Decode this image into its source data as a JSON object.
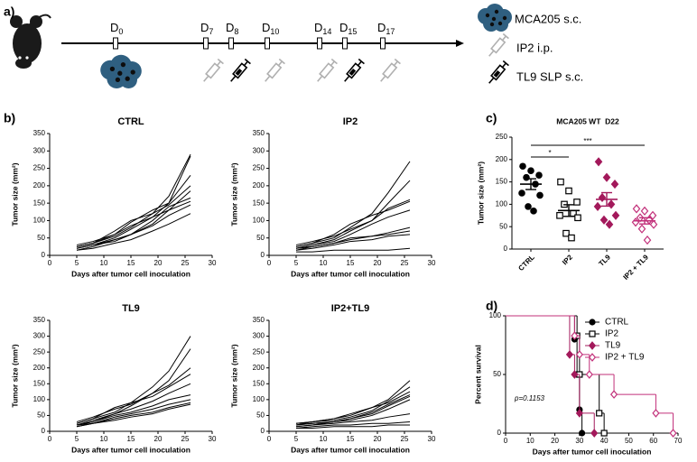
{
  "panel_labels": [
    "a)",
    "b)",
    "c)",
    "d)"
  ],
  "timeline": {
    "days": [
      {
        "prefix": "D",
        "sub": "0"
      },
      {
        "prefix": "D",
        "sub": "7"
      },
      {
        "prefix": "D",
        "sub": "8"
      },
      {
        "prefix": "D",
        "sub": "10"
      },
      {
        "prefix": "D",
        "sub": "14"
      },
      {
        "prefix": "D",
        "sub": "15"
      },
      {
        "prefix": "D",
        "sub": "17"
      }
    ],
    "legend": [
      "MCA205 s.c.",
      "IP2 i.p.",
      "TL9 SLP s.c."
    ]
  },
  "chart_data": [
    {
      "type": "line",
      "title": "CTRL",
      "xlabel": "Days after tumor cell inoculation",
      "ylabel": "Tumor size (mm²)",
      "color": "#000000",
      "xlim": [
        0,
        30
      ],
      "xticks": [
        0,
        5,
        10,
        15,
        20,
        25,
        30
      ],
      "ylim": [
        0,
        350
      ],
      "yticks": [
        0,
        50,
        100,
        150,
        200,
        250,
        300,
        350
      ],
      "x": [
        5,
        8,
        12,
        15,
        19,
        22,
        26
      ],
      "series": [
        {
          "values": [
            25,
            35,
            55,
            80,
            120,
            170,
            290
          ]
        },
        {
          "values": [
            20,
            30,
            50,
            75,
            110,
            150,
            285
          ]
        },
        {
          "values": [
            30,
            40,
            60,
            95,
            130,
            150,
            230
          ]
        },
        {
          "values": [
            25,
            35,
            70,
            100,
            120,
            145,
            200
          ]
        },
        {
          "values": [
            20,
            30,
            45,
            60,
            90,
            130,
            185
          ]
        },
        {
          "values": [
            15,
            25,
            45,
            60,
            100,
            140,
            165
          ]
        },
        {
          "values": [
            25,
            35,
            60,
            85,
            110,
            130,
            155
          ]
        },
        {
          "values": [
            20,
            30,
            40,
            60,
            85,
            115,
            145
          ]
        },
        {
          "values": [
            15,
            20,
            35,
            45,
            70,
            90,
            120
          ]
        }
      ]
    },
    {
      "type": "line",
      "title": "IP2",
      "xlabel": "Days after tumor cell inoculation",
      "ylabel": "Tumor size (mm²)",
      "color": "#000000",
      "xlim": [
        0,
        30
      ],
      "xticks": [
        0,
        5,
        10,
        15,
        20,
        25,
        30
      ],
      "ylim": [
        0,
        350
      ],
      "yticks": [
        0,
        50,
        100,
        150,
        200,
        250,
        300,
        350
      ],
      "x": [
        5,
        8,
        12,
        15,
        19,
        22,
        26
      ],
      "series": [
        {
          "values": [
            25,
            35,
            50,
            80,
            120,
            180,
            270
          ]
        },
        {
          "values": [
            20,
            30,
            45,
            70,
            100,
            150,
            215
          ]
        },
        {
          "values": [
            30,
            40,
            55,
            75,
            100,
            135,
            160
          ]
        },
        {
          "values": [
            25,
            35,
            60,
            90,
            115,
            130,
            155
          ]
        },
        {
          "values": [
            20,
            30,
            40,
            60,
            90,
            110,
            130
          ]
        },
        {
          "values": [
            15,
            25,
            35,
            50,
            55,
            65,
            80
          ]
        },
        {
          "values": [
            20,
            25,
            35,
            45,
            55,
            60,
            70
          ]
        },
        {
          "values": [
            15,
            20,
            30,
            40,
            45,
            55,
            60
          ]
        },
        {
          "values": [
            10,
            10,
            15,
            15,
            15,
            15,
            20
          ]
        }
      ]
    },
    {
      "type": "line",
      "title": "TL9",
      "xlabel": "Days after tumor cell inoculation",
      "ylabel": "Tumor size (mm²)",
      "color": "#000000",
      "xlim": [
        0,
        30
      ],
      "xticks": [
        0,
        5,
        10,
        15,
        20,
        25,
        30
      ],
      "ylim": [
        0,
        350
      ],
      "yticks": [
        0,
        50,
        100,
        150,
        200,
        250,
        300,
        350
      ],
      "x": [
        5,
        8,
        12,
        15,
        19,
        22,
        26
      ],
      "series": [
        {
          "values": [
            25,
            40,
            60,
            90,
            140,
            190,
            300
          ]
        },
        {
          "values": [
            20,
            35,
            55,
            80,
            120,
            160,
            260
          ]
        },
        {
          "values": [
            30,
            45,
            70,
            85,
            120,
            145,
            200
          ]
        },
        {
          "values": [
            25,
            40,
            75,
            90,
            110,
            140,
            180
          ]
        },
        {
          "values": [
            20,
            30,
            55,
            70,
            95,
            120,
            150
          ]
        },
        {
          "values": [
            20,
            30,
            50,
            60,
            80,
            100,
            115
          ]
        },
        {
          "values": [
            15,
            25,
            45,
            55,
            70,
            85,
            100
          ]
        },
        {
          "values": [
            15,
            25,
            40,
            50,
            60,
            75,
            90
          ]
        },
        {
          "values": [
            20,
            25,
            35,
            45,
            55,
            70,
            85
          ]
        }
      ]
    },
    {
      "type": "line",
      "title": "IP2+TL9",
      "xlabel": "Days after tumor cell inoculation",
      "ylabel": "Tumor size (mm²)",
      "color": "#000000",
      "xlim": [
        0,
        30
      ],
      "xticks": [
        0,
        5,
        10,
        15,
        20,
        25,
        30
      ],
      "ylim": [
        0,
        350
      ],
      "yticks": [
        0,
        50,
        100,
        150,
        200,
        250,
        300,
        350
      ],
      "x": [
        5,
        8,
        12,
        15,
        19,
        22,
        26
      ],
      "series": [
        {
          "values": [
            25,
            30,
            40,
            50,
            75,
            100,
            160
          ]
        },
        {
          "values": [
            20,
            30,
            35,
            45,
            65,
            95,
            140
          ]
        },
        {
          "values": [
            25,
            30,
            40,
            55,
            75,
            90,
            125
          ]
        },
        {
          "values": [
            20,
            25,
            30,
            40,
            60,
            85,
            115
          ]
        },
        {
          "values": [
            15,
            20,
            30,
            40,
            55,
            80,
            110
          ]
        },
        {
          "values": [
            20,
            25,
            30,
            35,
            50,
            70,
            100
          ]
        },
        {
          "values": [
            15,
            20,
            25,
            30,
            35,
            45,
            55
          ]
        },
        {
          "values": [
            10,
            15,
            20,
            20,
            25,
            25,
            30
          ]
        },
        {
          "values": [
            10,
            10,
            15,
            15,
            15,
            20,
            20
          ]
        }
      ]
    },
    {
      "type": "strip",
      "title": "MCA205 WT  D22",
      "ylabel": "Tumor size (mm²)",
      "ylim": [
        0,
        250
      ],
      "yticks": [
        0,
        50,
        100,
        150,
        200,
        250
      ],
      "categories": [
        "CTRL",
        "IP2",
        "TL9",
        "IP2 + TL9"
      ],
      "groups": [
        {
          "marker": "circle",
          "filled": true,
          "color": "#000000",
          "values": [
            185,
            175,
            165,
            160,
            145,
            125,
            120,
            95,
            85
          ],
          "mean": 145,
          "sem": 12
        },
        {
          "marker": "square",
          "filled": false,
          "color": "#000000",
          "values": [
            150,
            130,
            105,
            100,
            80,
            75,
            70,
            35,
            25
          ],
          "mean": 86,
          "sem": 13
        },
        {
          "marker": "diamond",
          "filled": true,
          "color": "#a3195b",
          "values": [
            195,
            160,
            145,
            115,
            100,
            95,
            75,
            65,
            55
          ],
          "mean": 111,
          "sem": 15
        },
        {
          "marker": "diamond",
          "filled": false,
          "color": "#c2307a",
          "values": [
            90,
            85,
            75,
            70,
            65,
            60,
            55,
            45,
            20
          ],
          "mean": 63,
          "sem": 7
        }
      ],
      "annotations": [
        {
          "text": "*",
          "between": [
            0,
            1
          ]
        },
        {
          "text": "***",
          "between": [
            0,
            3
          ]
        }
      ]
    },
    {
      "type": "survival",
      "xlabel": "Days after tumor cell inoculation",
      "ylabel": "Percent survival",
      "annotation": "p=0.1153",
      "xlim": [
        0,
        70
      ],
      "xticks": [
        0,
        10,
        20,
        30,
        40,
        50,
        60,
        70
      ],
      "ylim": [
        0,
        100
      ],
      "yticks": [
        0,
        50,
        100
      ],
      "series": [
        {
          "name": "CTRL",
          "color": "#000000",
          "marker": "circle",
          "filled": true,
          "x": [
            0,
            28,
            29,
            30,
            31
          ],
          "values": [
            100,
            80,
            50,
            20,
            0
          ]
        },
        {
          "name": "IP2",
          "color": "#000000",
          "marker": "square",
          "filled": false,
          "x": [
            0,
            29,
            30,
            38,
            40
          ],
          "values": [
            100,
            83,
            50,
            17,
            0
          ]
        },
        {
          "name": "TL9",
          "color": "#a3195b",
          "marker": "diamond",
          "filled": true,
          "x": [
            0,
            26,
            28,
            30,
            36
          ],
          "values": [
            100,
            67,
            50,
            17,
            0
          ]
        },
        {
          "name": "IP2 + TL9",
          "color": "#c2307a",
          "marker": "diamond",
          "filled": false,
          "x": [
            0,
            28,
            30,
            34,
            44,
            61,
            68
          ],
          "values": [
            100,
            83,
            67,
            50,
            33,
            17,
            0
          ]
        }
      ]
    }
  ]
}
